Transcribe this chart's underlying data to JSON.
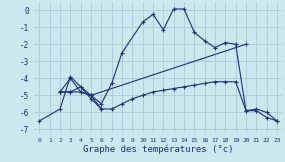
{
  "xlabel": "Graphe des températures (°c)",
  "background_color": "#cce8ee",
  "grid_color": "#a0c8d4",
  "line_color": "#1a3080",
  "xlim": [
    -0.5,
    23.5
  ],
  "ylim": [
    -7.2,
    0.5
  ],
  "yticks": [
    0,
    -1,
    -2,
    -3,
    -4,
    -5,
    -6,
    -7
  ],
  "xticks": [
    0,
    1,
    2,
    3,
    4,
    5,
    6,
    7,
    8,
    9,
    10,
    11,
    12,
    13,
    14,
    15,
    16,
    17,
    18,
    19,
    20,
    21,
    22,
    23
  ],
  "series_raw": [
    {
      "x": [
        0,
        2,
        3,
        4,
        5,
        6,
        7,
        8,
        10,
        11,
        12,
        13,
        14,
        15,
        16,
        17,
        18,
        19,
        20,
        21,
        22,
        23
      ],
      "y": [
        -6.5,
        -5.8,
        -3.9,
        -4.5,
        -5.0,
        -5.5,
        -4.3,
        -2.5,
        -0.7,
        -0.25,
        -1.15,
        0.07,
        0.07,
        -1.3,
        -1.8,
        -2.2,
        -1.9,
        -2.0,
        -5.9,
        -5.9,
        -6.3,
        -6.5
      ]
    },
    {
      "x": [
        2,
        3,
        4,
        5,
        6,
        7,
        8,
        9,
        10,
        11,
        12,
        13,
        14,
        15,
        16,
        17,
        18,
        19,
        20,
        21,
        22,
        23
      ],
      "y": [
        -4.8,
        -4.8,
        -4.8,
        -5.0,
        -5.8,
        -5.8,
        -5.5,
        -5.2,
        -5.0,
        -4.8,
        -4.7,
        -4.6,
        -4.5,
        -4.4,
        -4.3,
        -4.2,
        -4.2,
        -4.2,
        -5.9,
        -5.8,
        -6.0,
        -6.5
      ]
    },
    {
      "x": [
        2,
        3,
        4,
        5,
        6
      ],
      "y": [
        -4.8,
        -4.8,
        -4.5,
        -5.2,
        -5.8
      ]
    },
    {
      "x": [
        2,
        3,
        4,
        5,
        20
      ],
      "y": [
        -4.8,
        -4.0,
        -4.8,
        -5.0,
        -2.0
      ]
    }
  ]
}
